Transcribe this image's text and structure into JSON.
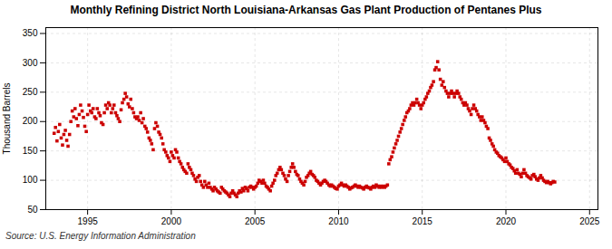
{
  "chart_data": {
    "type": "scatter",
    "title": "Monthly Refining District North Louisiana-Arkansas Gas Plant Production of Pentanes Plus",
    "ylabel": "Thousand Barrels",
    "source": "Source: U.S. Energy Information Administration",
    "color": "#cc0000",
    "marker": "square",
    "grid": true,
    "xlim": [
      1992.5,
      2025.5
    ],
    "ylim": [
      50,
      360
    ],
    "xticks": [
      1995,
      2000,
      2005,
      2010,
      2015,
      2020,
      2025
    ],
    "yticks": [
      50,
      100,
      150,
      200,
      250,
      300,
      350
    ],
    "x": [
      1993.0,
      1993.08,
      1993.17,
      1993.25,
      1993.33,
      1993.42,
      1993.5,
      1993.58,
      1993.67,
      1993.75,
      1993.83,
      1993.92,
      1994.0,
      1994.08,
      1994.17,
      1994.25,
      1994.33,
      1994.42,
      1994.5,
      1994.58,
      1994.67,
      1994.75,
      1994.83,
      1994.92,
      1995.0,
      1995.08,
      1995.17,
      1995.25,
      1995.33,
      1995.42,
      1995.5,
      1995.58,
      1995.67,
      1995.75,
      1995.83,
      1995.92,
      1996.0,
      1996.08,
      1996.17,
      1996.25,
      1996.33,
      1996.42,
      1996.5,
      1996.58,
      1996.67,
      1996.75,
      1996.83,
      1996.92,
      1997.0,
      1997.08,
      1997.17,
      1997.25,
      1997.33,
      1997.42,
      1997.5,
      1997.58,
      1997.67,
      1997.75,
      1997.83,
      1997.92,
      1998.0,
      1998.08,
      1998.17,
      1998.25,
      1998.33,
      1998.42,
      1998.5,
      1998.58,
      1998.67,
      1998.75,
      1998.83,
      1998.92,
      1999.0,
      1999.08,
      1999.17,
      1999.25,
      1999.33,
      1999.42,
      1999.5,
      1999.58,
      1999.67,
      1999.75,
      1999.83,
      1999.92,
      2000.0,
      2000.08,
      2000.17,
      2000.25,
      2000.33,
      2000.42,
      2000.5,
      2000.58,
      2000.67,
      2000.75,
      2000.83,
      2000.92,
      2001.0,
      2001.08,
      2001.17,
      2001.25,
      2001.33,
      2001.42,
      2001.5,
      2001.58,
      2001.67,
      2001.75,
      2001.83,
      2001.92,
      2002.0,
      2002.08,
      2002.17,
      2002.25,
      2002.33,
      2002.42,
      2002.5,
      2002.58,
      2002.67,
      2002.75,
      2002.83,
      2002.92,
      2003.0,
      2003.08,
      2003.17,
      2003.25,
      2003.33,
      2003.42,
      2003.5,
      2003.58,
      2003.67,
      2003.75,
      2003.83,
      2003.92,
      2004.0,
      2004.08,
      2004.17,
      2004.25,
      2004.33,
      2004.42,
      2004.5,
      2004.58,
      2004.67,
      2004.75,
      2004.83,
      2004.92,
      2005.0,
      2005.08,
      2005.17,
      2005.25,
      2005.33,
      2005.42,
      2005.5,
      2005.58,
      2005.67,
      2005.75,
      2005.83,
      2005.92,
      2006.0,
      2006.08,
      2006.17,
      2006.25,
      2006.33,
      2006.42,
      2006.5,
      2006.58,
      2006.67,
      2006.75,
      2006.83,
      2006.92,
      2007.0,
      2007.08,
      2007.17,
      2007.25,
      2007.33,
      2007.42,
      2007.5,
      2007.58,
      2007.67,
      2007.75,
      2007.83,
      2007.92,
      2008.0,
      2008.08,
      2008.17,
      2008.25,
      2008.33,
      2008.42,
      2008.5,
      2008.58,
      2008.67,
      2008.75,
      2008.83,
      2008.92,
      2009.0,
      2009.08,
      2009.17,
      2009.25,
      2009.33,
      2009.42,
      2009.5,
      2009.58,
      2009.67,
      2009.75,
      2009.83,
      2009.92,
      2010.0,
      2010.08,
      2010.17,
      2010.25,
      2010.33,
      2010.42,
      2010.5,
      2010.58,
      2010.67,
      2010.75,
      2010.83,
      2010.92,
      2011.0,
      2011.08,
      2011.17,
      2011.25,
      2011.33,
      2011.42,
      2011.5,
      2011.58,
      2011.67,
      2011.75,
      2011.83,
      2011.92,
      2012.0,
      2012.08,
      2012.17,
      2012.25,
      2012.33,
      2012.42,
      2012.5,
      2012.58,
      2012.67,
      2012.75,
      2012.83,
      2012.92,
      2013.0,
      2013.08,
      2013.17,
      2013.25,
      2013.33,
      2013.42,
      2013.5,
      2013.58,
      2013.67,
      2013.75,
      2013.83,
      2013.92,
      2014.0,
      2014.08,
      2014.17,
      2014.25,
      2014.33,
      2014.42,
      2014.5,
      2014.58,
      2014.67,
      2014.75,
      2014.83,
      2014.92,
      2015.0,
      2015.08,
      2015.17,
      2015.25,
      2015.33,
      2015.42,
      2015.5,
      2015.58,
      2015.67,
      2015.75,
      2015.83,
      2015.92,
      2016.0,
      2016.08,
      2016.17,
      2016.25,
      2016.33,
      2016.42,
      2016.5,
      2016.58,
      2016.67,
      2016.75,
      2016.83,
      2016.92,
      2017.0,
      2017.08,
      2017.17,
      2017.25,
      2017.33,
      2017.42,
      2017.5,
      2017.58,
      2017.67,
      2017.75,
      2017.83,
      2017.92,
      2018.0,
      2018.08,
      2018.17,
      2018.25,
      2018.33,
      2018.42,
      2018.5,
      2018.58,
      2018.67,
      2018.75,
      2018.83,
      2018.92,
      2019.0,
      2019.08,
      2019.17,
      2019.25,
      2019.33,
      2019.42,
      2019.5,
      2019.58,
      2019.67,
      2019.75,
      2019.83,
      2019.92,
      2020.0,
      2020.08,
      2020.17,
      2020.25,
      2020.33,
      2020.42,
      2020.5,
      2020.58,
      2020.67,
      2020.75,
      2020.83,
      2020.92,
      2021.0,
      2021.08,
      2021.17,
      2021.25,
      2021.33,
      2021.42,
      2021.5,
      2021.58,
      2021.67,
      2021.75,
      2021.83,
      2021.92,
      2022.0,
      2022.08,
      2022.17,
      2022.25,
      2022.33,
      2022.42,
      2022.5,
      2022.58,
      2022.67,
      2022.75,
      2022.83,
      2022.92
    ],
    "values": [
      180,
      190,
      167,
      183,
      195,
      172,
      160,
      178,
      185,
      168,
      158,
      178,
      200,
      218,
      208,
      222,
      205,
      193,
      212,
      228,
      218,
      207,
      192,
      183,
      212,
      228,
      218,
      215,
      222,
      208,
      205,
      222,
      215,
      210,
      198,
      195,
      215,
      228,
      222,
      232,
      228,
      215,
      222,
      228,
      215,
      210,
      205,
      200,
      220,
      232,
      238,
      248,
      242,
      230,
      225,
      238,
      222,
      215,
      208,
      205,
      208,
      202,
      215,
      198,
      205,
      192,
      188,
      182,
      172,
      168,
      162,
      152,
      188,
      198,
      192,
      182,
      178,
      172,
      162,
      152,
      148,
      142,
      138,
      132,
      148,
      142,
      138,
      152,
      148,
      138,
      132,
      128,
      122,
      118,
      115,
      112,
      128,
      122,
      118,
      112,
      108,
      102,
      98,
      105,
      108,
      98,
      92,
      88,
      98,
      92,
      88,
      95,
      88,
      85,
      82,
      88,
      85,
      82,
      80,
      78,
      88,
      85,
      82,
      80,
      78,
      75,
      72,
      78,
      82,
      78,
      75,
      72,
      78,
      82,
      80,
      86,
      82,
      88,
      86,
      82,
      88,
      90,
      88,
      85,
      88,
      90,
      95,
      100,
      98,
      95,
      100,
      95,
      90,
      88,
      85,
      82,
      90,
      95,
      100,
      108,
      112,
      118,
      122,
      118,
      112,
      108,
      102,
      98,
      108,
      115,
      122,
      128,
      122,
      115,
      110,
      108,
      102,
      98,
      95,
      92,
      98,
      105,
      108,
      112,
      115,
      110,
      108,
      105,
      100,
      98,
      95,
      92,
      95,
      98,
      100,
      98,
      95,
      92,
      90,
      92,
      90,
      88,
      86,
      85,
      90,
      92,
      95,
      92,
      90,
      92,
      90,
      88,
      85,
      87,
      88,
      90,
      92,
      90,
      88,
      90,
      88,
      87,
      85,
      88,
      90,
      88,
      87,
      85,
      88,
      90,
      88,
      92,
      90,
      88,
      90,
      88,
      90,
      88,
      90,
      92,
      128,
      135,
      140,
      148,
      155,
      162,
      168,
      175,
      182,
      188,
      195,
      202,
      208,
      215,
      218,
      222,
      228,
      232,
      228,
      232,
      238,
      232,
      228,
      222,
      228,
      232,
      238,
      242,
      248,
      252,
      258,
      262,
      268,
      288,
      292,
      302,
      288,
      272,
      262,
      268,
      258,
      252,
      248,
      242,
      248,
      252,
      248,
      242,
      248,
      252,
      248,
      242,
      238,
      232,
      228,
      232,
      228,
      222,
      218,
      212,
      222,
      228,
      222,
      218,
      212,
      208,
      202,
      208,
      202,
      198,
      192,
      188,
      172,
      168,
      162,
      158,
      152,
      148,
      146,
      142,
      140,
      138,
      135,
      132,
      138,
      132,
      128,
      126,
      122,
      120,
      116,
      112,
      118,
      112,
      110,
      106,
      112,
      118,
      112,
      108,
      106,
      104,
      102,
      108,
      110,
      106,
      102,
      100,
      104,
      108,
      104,
      100,
      98,
      96,
      98,
      96,
      94,
      96,
      98,
      97
    ]
  }
}
